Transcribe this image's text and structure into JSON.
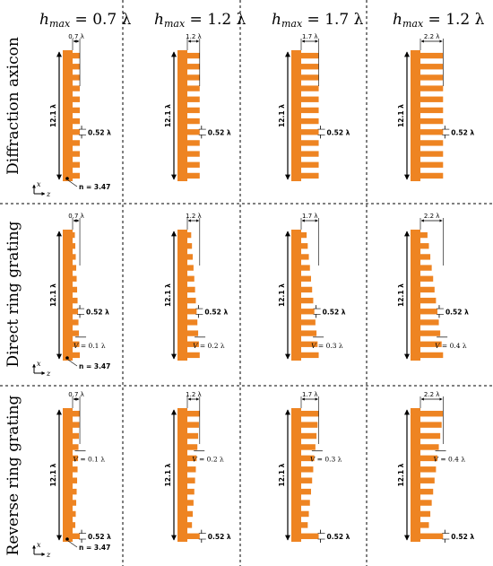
{
  "columns": [
    {
      "h_symbol": "h",
      "h_sub": "max",
      "h_value": " = 0.7 λ",
      "width_label": "0.7 λ",
      "w": 0.7
    },
    {
      "h_symbol": "h",
      "h_sub": "max",
      "h_value": " = 1.2 λ",
      "width_label": "1.2 λ",
      "w": 1.2
    },
    {
      "h_symbol": "h",
      "h_sub": "max",
      "h_value": " = 1.7 λ",
      "width_label": "1.7 λ",
      "w": 1.7
    },
    {
      "h_symbol": "h",
      "h_sub": "max",
      "h_value": " = 1.2 λ",
      "width_label": "2.2 λ",
      "w": 2.2
    }
  ],
  "rows": [
    {
      "label": "Diffraction axicon",
      "type": "axicon",
      "v_labels": [
        "",
        "",
        "",
        ""
      ],
      "v_prefix": "",
      "v_eq": ""
    },
    {
      "label": "Direct ring grating",
      "type": "direct",
      "v_labels": [
        "0.1 λ",
        "0.2 λ",
        "0.3 λ",
        "0.4 λ"
      ],
      "v_prefix": "V",
      "v_eq": " = "
    },
    {
      "label": "Reverse ring grating",
      "type": "reverse",
      "v_labels": [
        "0.1 λ",
        "0.2 λ",
        "0.3 λ",
        "0.4 λ"
      ],
      "v_prefix": "V",
      "v_eq": " = "
    }
  ],
  "height_label": "12.1 λ",
  "period_label": "0.52 λ",
  "index_label": "n = 3.47",
  "axes": {
    "x": "x",
    "z": "z"
  },
  "colors": {
    "structure": "#ee8422",
    "separator": "#000000"
  }
}
